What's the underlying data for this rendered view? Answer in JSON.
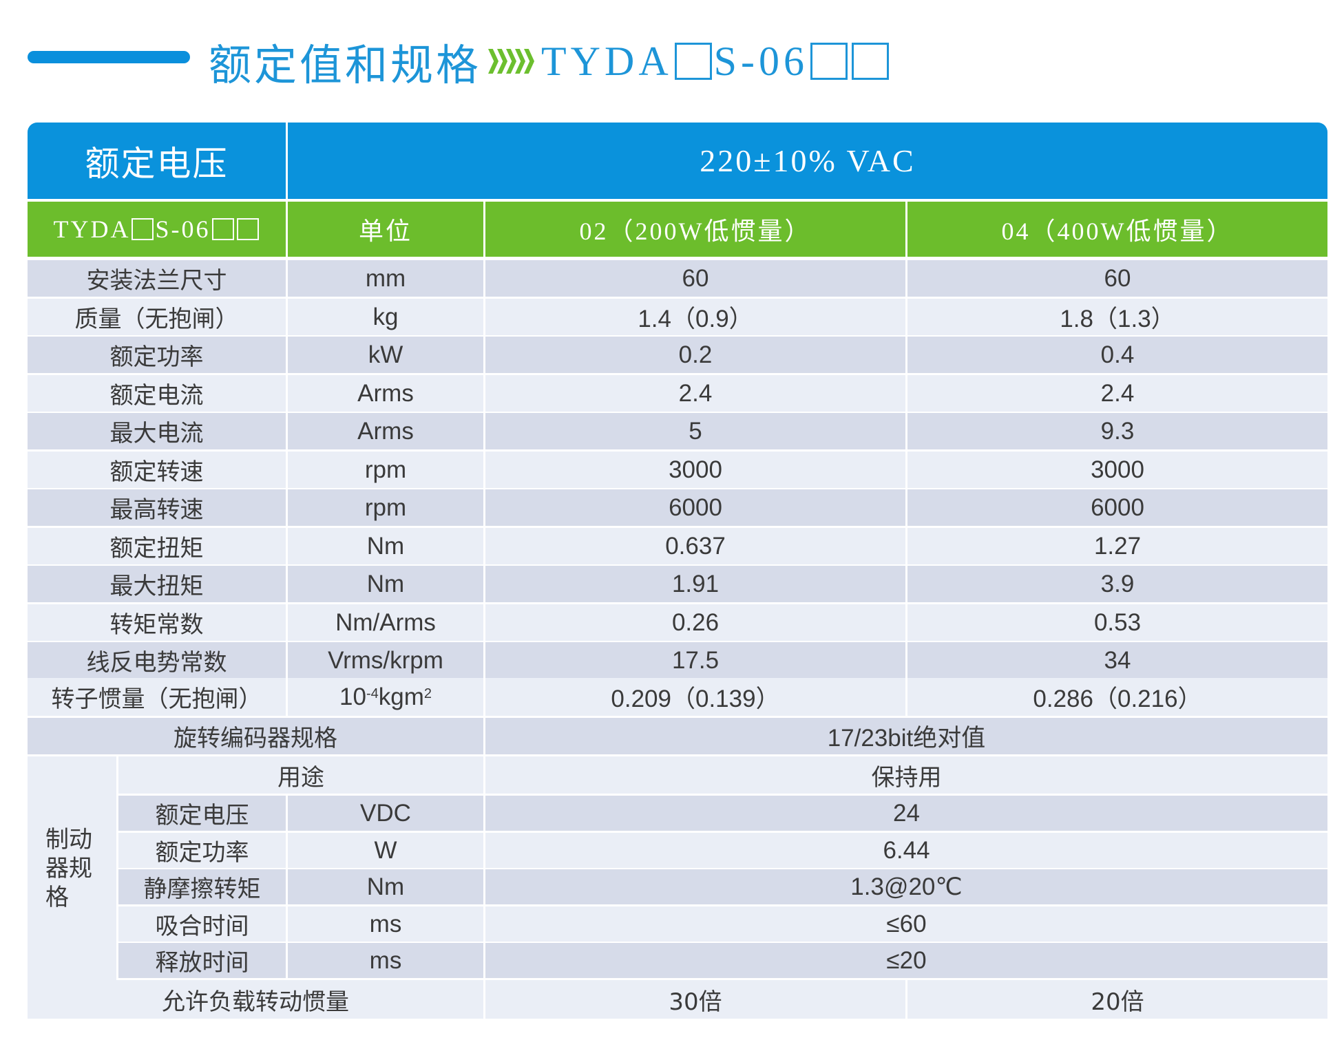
{
  "header": {
    "title": "额定值和规格",
    "model_prefix": "TYDA",
    "model_mid": "S-06"
  },
  "table": {
    "voltage_label": "额定电压",
    "voltage_value": "220±10% VAC",
    "col_model_prefix": "TYDA",
    "col_model_mid": "S-06",
    "col_unit": "单位",
    "col_02": "02（200W低惯量）",
    "col_04": "04（400W低惯量）",
    "rows": [
      {
        "name": "安装法兰尺寸",
        "unit": "mm",
        "v02": "60",
        "v04": "60"
      },
      {
        "name": "质量（无抱闸）",
        "unit": "kg",
        "v02": "1.4（0.9）",
        "v04": "1.8（1.3）"
      },
      {
        "name": "额定功率",
        "unit": "kW",
        "v02": "0.2",
        "v04": "0.4"
      },
      {
        "name": "额定电流",
        "unit": "Arms",
        "v02": "2.4",
        "v04": "2.4"
      },
      {
        "name": "最大电流",
        "unit": "Arms",
        "v02": "5",
        "v04": "9.3"
      },
      {
        "name": "额定转速",
        "unit": "rpm",
        "v02": "3000",
        "v04": "3000"
      },
      {
        "name": "最高转速",
        "unit": "rpm",
        "v02": "6000",
        "v04": "6000"
      },
      {
        "name": "额定扭矩",
        "unit": "Nm",
        "v02": "0.637",
        "v04": "1.27"
      },
      {
        "name": "最大扭矩",
        "unit": "Nm",
        "v02": "1.91",
        "v04": "3.9"
      },
      {
        "name": "转矩常数",
        "unit": "Nm/Arms",
        "v02": "0.26",
        "v04": "0.53"
      },
      {
        "name": "线反电势常数",
        "unit": "Vrms/krpm",
        "v02": "17.5",
        "v04": "34"
      }
    ],
    "inertia": {
      "name": "转子惯量（无抱闸）",
      "unit_base": "10",
      "unit_exp": "-4",
      "unit_mid": "kgm",
      "unit_exp2": "2",
      "v02": "0.209（0.139）",
      "v04": "0.286（0.216）"
    },
    "encoder": {
      "name": "旋转编码器规格",
      "value": "17/23bit绝对值"
    },
    "brake": {
      "group_label": "制动器规格",
      "use_label": "用途",
      "use_value": "保持用",
      "rows": [
        {
          "name": "额定电压",
          "unit": "VDC",
          "value": "24"
        },
        {
          "name": "额定功率",
          "unit": "W",
          "value": "6.44"
        },
        {
          "name": "静摩擦转矩",
          "unit": "Nm",
          "value": "1.3@20℃"
        },
        {
          "name": "吸合时间",
          "unit": "ms",
          "value": "≤60"
        },
        {
          "name": "释放时间",
          "unit": "ms",
          "value": "≤20"
        }
      ]
    },
    "load_inertia": {
      "name": "允许负载转动惯量",
      "v02": "30倍",
      "v04": "20倍"
    }
  }
}
